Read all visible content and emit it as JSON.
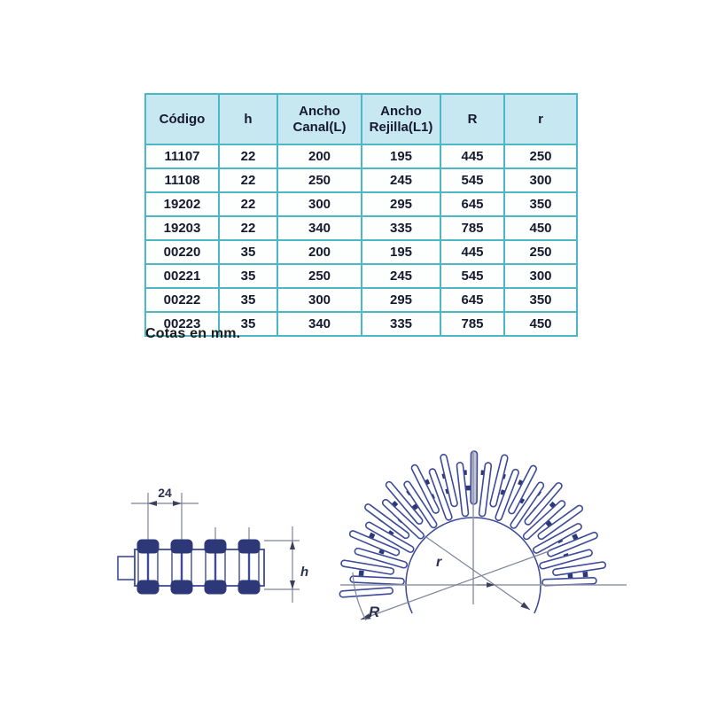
{
  "table": {
    "headers": [
      "Código",
      "h",
      "Ancho\nCanal(L)",
      "Ancho\nRejilla(L1)",
      "R",
      "r"
    ],
    "rows": [
      [
        "11107",
        "22",
        "200",
        "195",
        "445",
        "250"
      ],
      [
        "11108",
        "22",
        "250",
        "245",
        "545",
        "300"
      ],
      [
        "19202",
        "22",
        "300",
        "295",
        "645",
        "350"
      ],
      [
        "19203",
        "22",
        "340",
        "335",
        "785",
        "450"
      ],
      [
        "00220",
        "35",
        "200",
        "195",
        "445",
        "250"
      ],
      [
        "00221",
        "35",
        "250",
        "245",
        "545",
        "300"
      ],
      [
        "00222",
        "35",
        "300",
        "295",
        "645",
        "350"
      ],
      [
        "00223",
        "35",
        "340",
        "335",
        "785",
        "450"
      ]
    ],
    "header_bg": "#c7e8f0",
    "border_color": "#4cb8c6",
    "text_color": "#161a2e"
  },
  "caption": "Cotas en mm.",
  "figures": {
    "section_view": {
      "pitch_dimension": "24",
      "height_dimension": "h"
    },
    "fan_view": {
      "inner_radius_label": "r",
      "outer_radius_label": "R"
    },
    "line_color": "#3d4b99",
    "dark_fill": "#2d3878",
    "dim_color": "#7d829b"
  }
}
